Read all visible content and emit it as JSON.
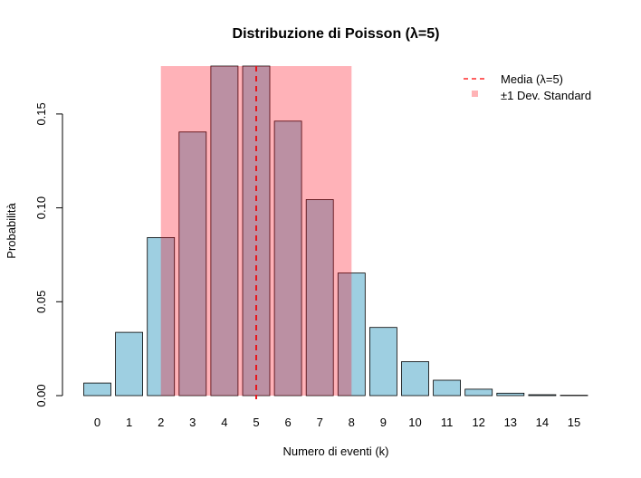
{
  "chart_data": {
    "type": "bar",
    "title": "Distribuzione di Poisson (λ=5)",
    "xlabel": "Numero di eventi (k)",
    "ylabel": "Probabilità",
    "categories": [
      "0",
      "1",
      "2",
      "3",
      "4",
      "5",
      "6",
      "7",
      "8",
      "9",
      "10",
      "11",
      "12",
      "13",
      "14",
      "15"
    ],
    "values": [
      0.0067,
      0.0337,
      0.0842,
      0.1404,
      0.1755,
      0.1755,
      0.1462,
      0.1044,
      0.0653,
      0.0363,
      0.0181,
      0.0082,
      0.0034,
      0.0013,
      0.0005,
      0.0002
    ],
    "ylim": [
      0,
      0.18
    ],
    "yticks": [
      "0.00",
      "0.05",
      "0.10",
      "0.15"
    ],
    "ytick_values": [
      0,
      0.05,
      0.1,
      0.15
    ],
    "mean": 5,
    "std_band": [
      2,
      8
    ],
    "band_top": 0.1755,
    "legend": {
      "placement": "top-right",
      "entries": [
        {
          "label": "Media (λ=5)",
          "symbol": "dashed-line",
          "color": "#ff0000"
        },
        {
          "label": "±1 Dev. Standard",
          "symbol": "square",
          "color": "#ffb3b6"
        }
      ]
    },
    "colors": {
      "bar_fill": "#9ecfe1",
      "band_fill": "#ff0013",
      "band_opacity": 0.3,
      "mean_line": "#e8151b"
    }
  }
}
